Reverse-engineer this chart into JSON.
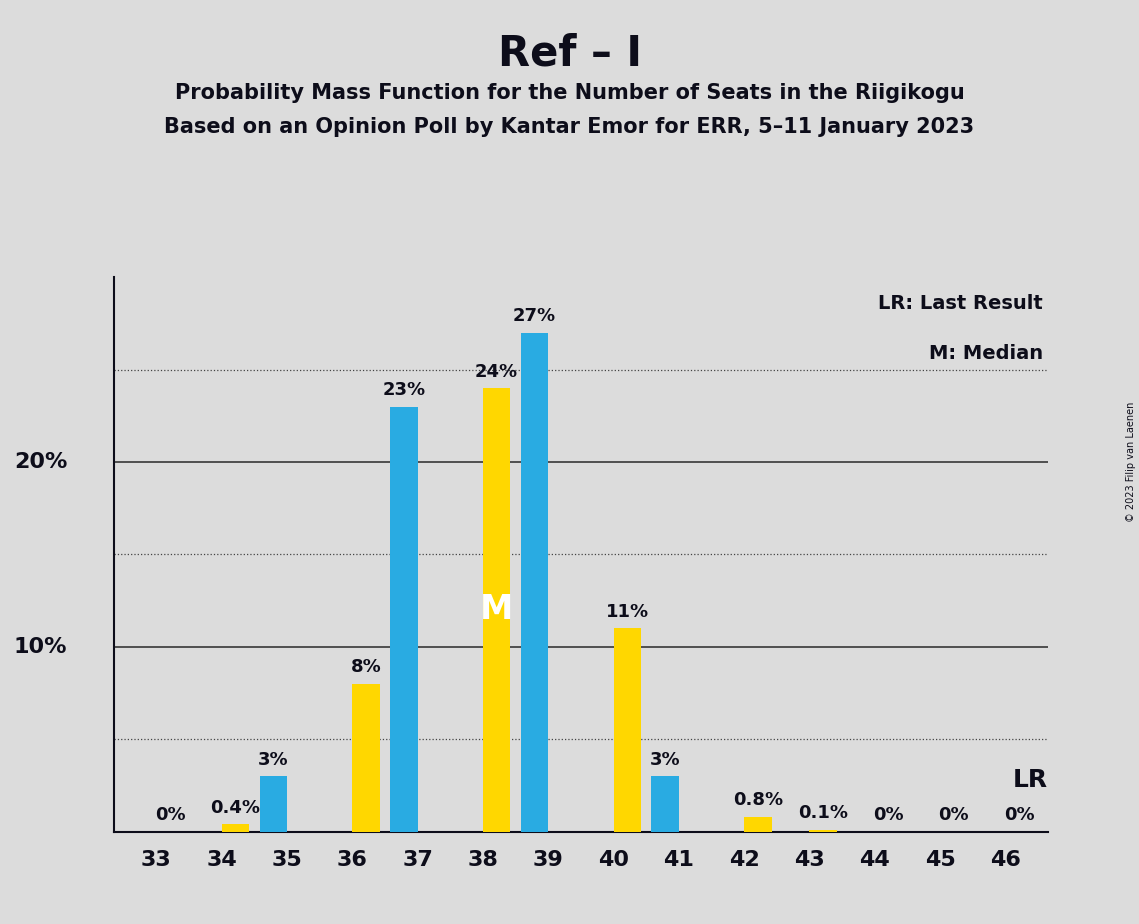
{
  "title": "Ref – I",
  "subtitle1": "Probability Mass Function for the Number of Seats in the Riigikogu",
  "subtitle2": "Based on an Opinion Poll by Kantar Emor for ERR, 5–11 January 2023",
  "copyright": "© 2023 Filip van Laenen",
  "categories": [
    33,
    34,
    35,
    36,
    37,
    38,
    39,
    40,
    41,
    42,
    43,
    44,
    45,
    46
  ],
  "blue_values": [
    0.0,
    0.0,
    3.0,
    0.0,
    23.0,
    0.0,
    27.0,
    0.0,
    3.0,
    0.0,
    0.0,
    0.0,
    0.0,
    0.0
  ],
  "yellow_values": [
    0.0,
    0.4,
    0.0,
    8.0,
    0.0,
    24.0,
    0.0,
    11.0,
    0.0,
    0.8,
    0.1,
    0.0,
    0.0,
    0.0
  ],
  "blue_labels": [
    "",
    "",
    "3%",
    "",
    "23%",
    "",
    "27%",
    "",
    "3%",
    "",
    "",
    "",
    "",
    ""
  ],
  "yellow_labels": [
    "0%",
    "0.4%",
    "",
    "8%",
    "",
    "24%",
    "",
    "11%",
    "",
    "0.8%",
    "0.1%",
    "0%",
    "0%",
    "0%"
  ],
  "median_bar_seat": 38,
  "blue_color": "#29ABE2",
  "yellow_color": "#FFD700",
  "background_color": "#DCDCDC",
  "grid_color": "#444444",
  "text_color": "#0d0d1a",
  "dotted_grid_lines": [
    5.0,
    15.0,
    25.0
  ],
  "solid_grid_lines": [
    10.0,
    20.0
  ],
  "legend_lr": "LR: Last Result",
  "legend_m": "M: Median",
  "lr_text": "LR",
  "ymax": 30.0,
  "bar_width": 0.42
}
